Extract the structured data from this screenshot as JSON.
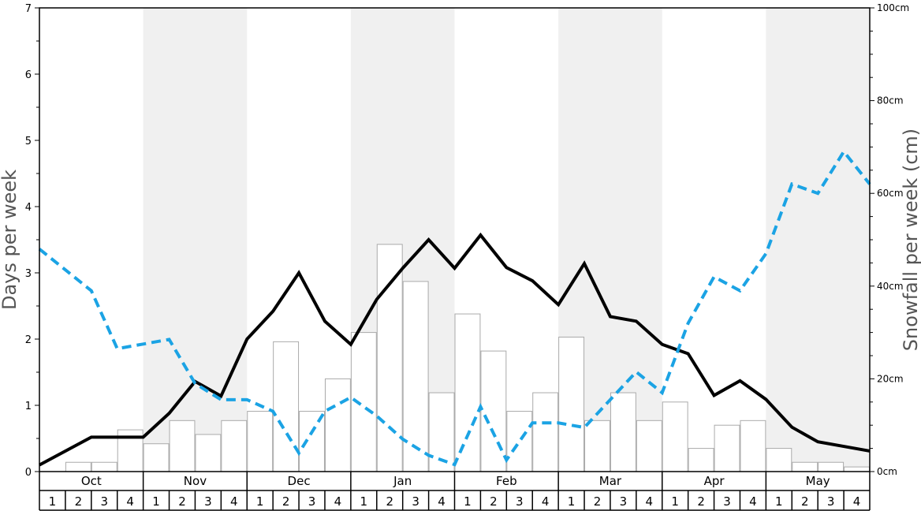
{
  "chart_data": {
    "type": "bar",
    "months": [
      "Oct",
      "Nov",
      "Dec",
      "Jan",
      "Feb",
      "Mar",
      "Apr",
      "May"
    ],
    "weeks": [
      "1",
      "2",
      "3",
      "4"
    ],
    "ylabel_left": "Days per week",
    "ylabel_right": "Snowfall per week (cm)",
    "ylim_left": [
      0,
      7
    ],
    "ylim_right": [
      0,
      100
    ],
    "left_ticks": [
      "0",
      "1",
      "2",
      "3",
      "4",
      "5",
      "6",
      "7"
    ],
    "right_ticks": [
      "0cm",
      "20cm",
      "40cm",
      "60cm",
      "80cm",
      "100cm"
    ],
    "shaded_months": [
      "Nov",
      "Jan",
      "Mar",
      "May"
    ],
    "colors": {
      "bar_fill": "#ffffff",
      "bar_stroke": "#aaaaaa",
      "snow_days_line": "#000000",
      "dashed_line": "#1ba3e4",
      "shade": "#f0f0f0"
    },
    "series": [
      {
        "axis": "right",
        "style": "bar",
        "values": [
          0,
          2,
          2,
          9,
          6,
          11,
          8,
          11,
          13,
          28,
          13,
          20,
          30,
          49,
          41,
          17,
          34,
          26,
          13,
          17,
          29,
          11,
          17,
          11,
          15,
          5,
          10,
          11,
          5,
          2,
          2,
          1
        ]
      },
      {
        "axis": "left",
        "style": "solid-line",
        "values": [
          0.1,
          0.31,
          0.52,
          0.52,
          0.52,
          0.88,
          1.36,
          1.14,
          2.0,
          2.42,
          3.0,
          2.27,
          1.92,
          2.6,
          3.07,
          3.5,
          3.07,
          3.57,
          3.08,
          2.88,
          2.52,
          3.14,
          2.34,
          2.27,
          1.92,
          1.78,
          1.15,
          1.37,
          1.09,
          0.67,
          0.45,
          0.38,
          0.31
        ]
      },
      {
        "axis": "right",
        "style": "dashed-line",
        "values": [
          48,
          43.5,
          39,
          26.5,
          27.5,
          28.5,
          19,
          15.5,
          15.5,
          13,
          4,
          13,
          16,
          12,
          7,
          3.5,
          1.5,
          14,
          2.5,
          10.5,
          10.5,
          9.5,
          15.5,
          21.5,
          17,
          32,
          42,
          39,
          47,
          62,
          60,
          69,
          62
        ]
      }
    ]
  }
}
